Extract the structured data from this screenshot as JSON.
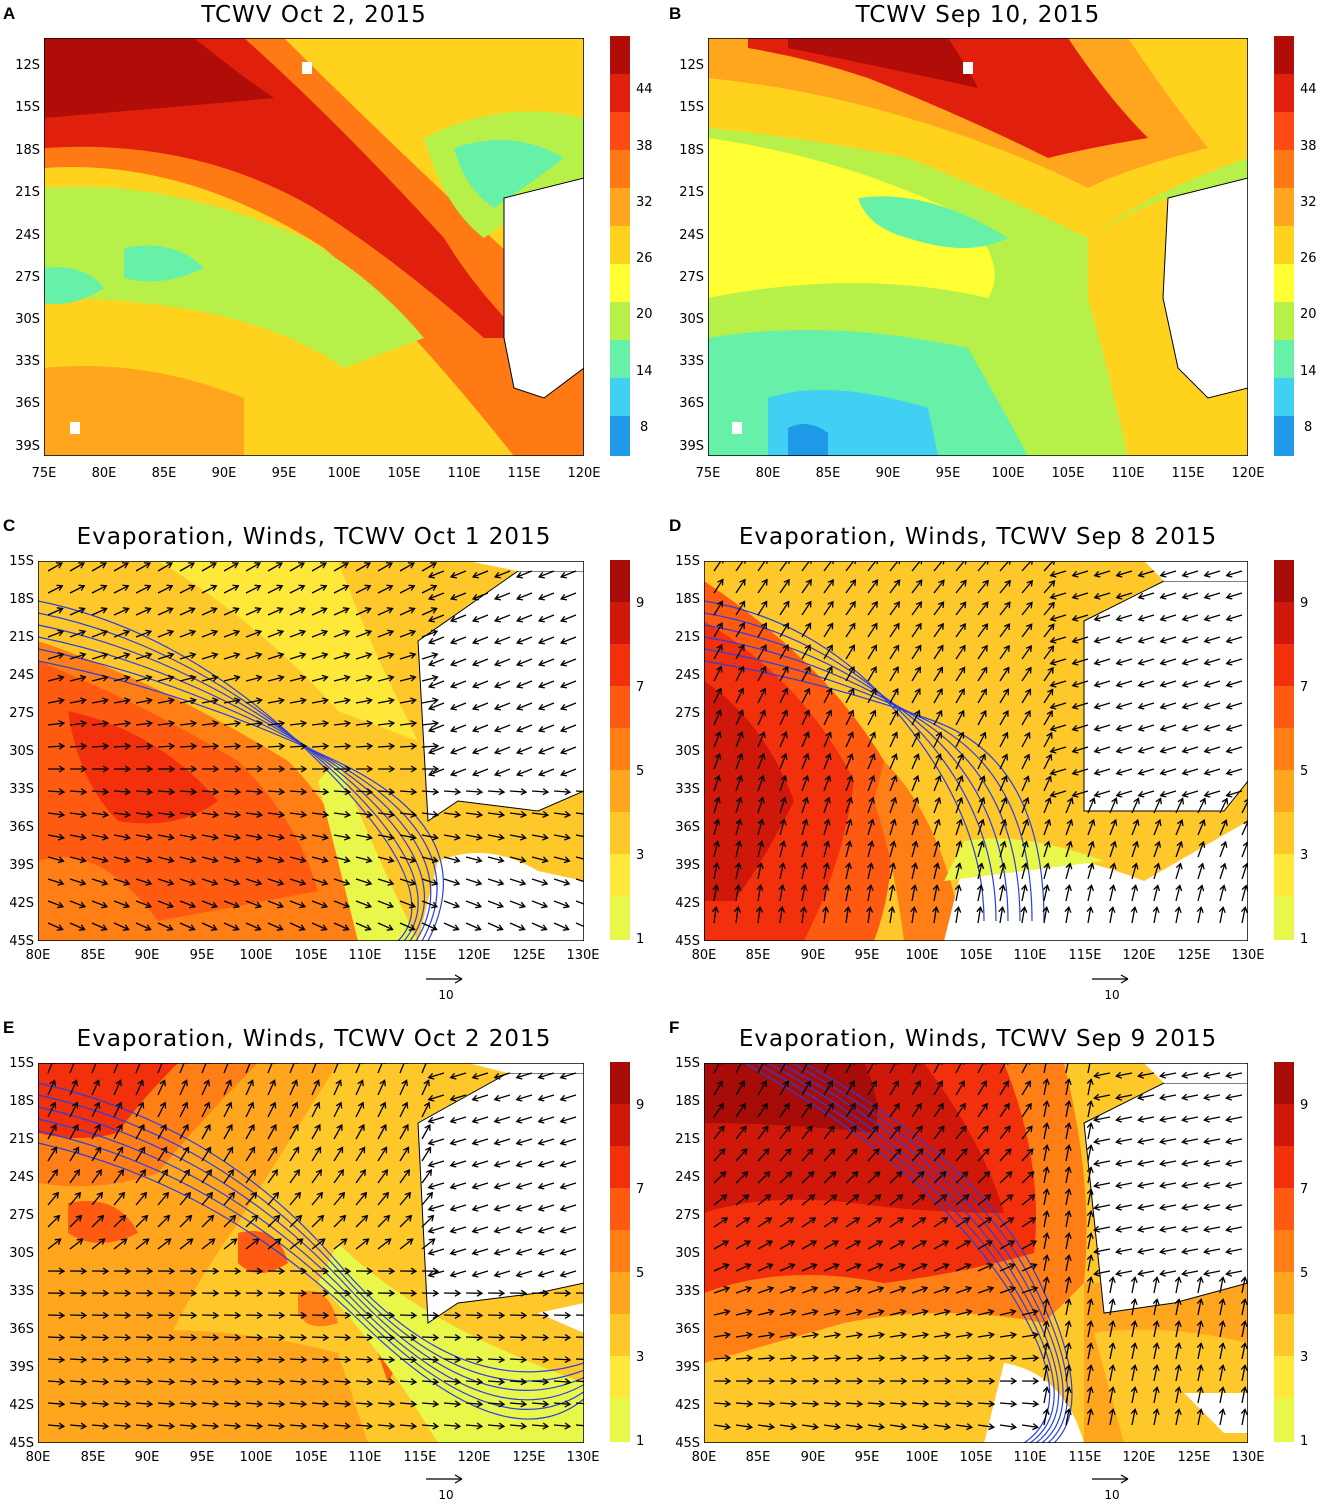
{
  "panels": {
    "A": {
      "label": "A",
      "title": "TCWV Oct 2, 2015",
      "y_ticks": [
        "12S",
        "15S",
        "18S",
        "21S",
        "24S",
        "27S",
        "30S",
        "33S",
        "36S",
        "39S"
      ],
      "x_ticks": [
        "75E",
        "80E",
        "85E",
        "90E",
        "95E",
        "100E",
        "105E",
        "110E",
        "115E",
        "120E"
      ],
      "colorbar_labels": [
        "44",
        "38",
        "32",
        "26",
        "20",
        "14",
        "8"
      ]
    },
    "B": {
      "label": "B",
      "title": "TCWV Sep 10, 2015",
      "y_ticks": [
        "12S",
        "15S",
        "18S",
        "21S",
        "24S",
        "27S",
        "30S",
        "33S",
        "36S",
        "39S"
      ],
      "x_ticks": [
        "75E",
        "80E",
        "85E",
        "90E",
        "95E",
        "100E",
        "105E",
        "110E",
        "115E",
        "120E"
      ],
      "colorbar_labels": [
        "44",
        "38",
        "32",
        "26",
        "20",
        "14",
        "8"
      ]
    },
    "C": {
      "label": "C",
      "title": "Evaporation, Winds, TCWV Oct 1 2015",
      "y_ticks": [
        "15S",
        "18S",
        "21S",
        "24S",
        "27S",
        "30S",
        "33S",
        "36S",
        "39S",
        "42S",
        "45S"
      ],
      "x_ticks": [
        "80E",
        "85E",
        "90E",
        "95E",
        "100E",
        "105E",
        "110E",
        "115E",
        "120E",
        "125E",
        "130E"
      ],
      "colorbar_labels": [
        "9",
        "7",
        "5",
        "3",
        "1"
      ],
      "ref_vector_label": "10"
    },
    "D": {
      "label": "D",
      "title": "Evaporation, Winds, TCWV Sep 8 2015",
      "y_ticks": [
        "15S",
        "18S",
        "21S",
        "24S",
        "27S",
        "30S",
        "33S",
        "36S",
        "39S",
        "42S",
        "45S"
      ],
      "x_ticks": [
        "80E",
        "85E",
        "90E",
        "95E",
        "100E",
        "105E",
        "110E",
        "115E",
        "120E",
        "125E",
        "130E"
      ],
      "colorbar_labels": [
        "9",
        "7",
        "5",
        "3",
        "1"
      ],
      "ref_vector_label": "10"
    },
    "E": {
      "label": "E",
      "title": "Evaporation, Winds, TCWV Oct 2 2015",
      "y_ticks": [
        "15S",
        "18S",
        "21S",
        "24S",
        "27S",
        "30S",
        "33S",
        "36S",
        "39S",
        "42S",
        "45S"
      ],
      "x_ticks": [
        "80E",
        "85E",
        "90E",
        "95E",
        "100E",
        "105E",
        "110E",
        "115E",
        "120E",
        "125E",
        "130E"
      ],
      "colorbar_labels": [
        "9",
        "7",
        "5",
        "3",
        "1"
      ],
      "ref_vector_label": "10"
    },
    "F": {
      "label": "F",
      "title": "Evaporation, Winds, TCWV Sep 9 2015",
      "y_ticks": [
        "15S",
        "18S",
        "21S",
        "24S",
        "27S",
        "30S",
        "33S",
        "36S",
        "39S",
        "42S",
        "45S"
      ],
      "x_ticks": [
        "80E",
        "85E",
        "90E",
        "95E",
        "100E",
        "105E",
        "110E",
        "115E",
        "120E",
        "125E",
        "130E"
      ],
      "colorbar_labels": [
        "9",
        "7",
        "5",
        "3",
        "1"
      ],
      "ref_vector_label": "10"
    }
  },
  "colors": {
    "tcwv_scale": [
      "#1e9ae8",
      "#3fd0f3",
      "#66f0a8",
      "#b8f04a",
      "#ffff33",
      "#ffd21e",
      "#ffa51e",
      "#ff7a14",
      "#ff4a14",
      "#e0200c",
      "#b00c08"
    ],
    "evap_scale": [
      "#e8f74a",
      "#ffe83a",
      "#ffc82a",
      "#ffa61e",
      "#ff7e16",
      "#ff5a12",
      "#f2300c",
      "#d0180a",
      "#a80c08"
    ],
    "contour_blue": "#2a3fe0",
    "land": "#ffffff"
  }
}
